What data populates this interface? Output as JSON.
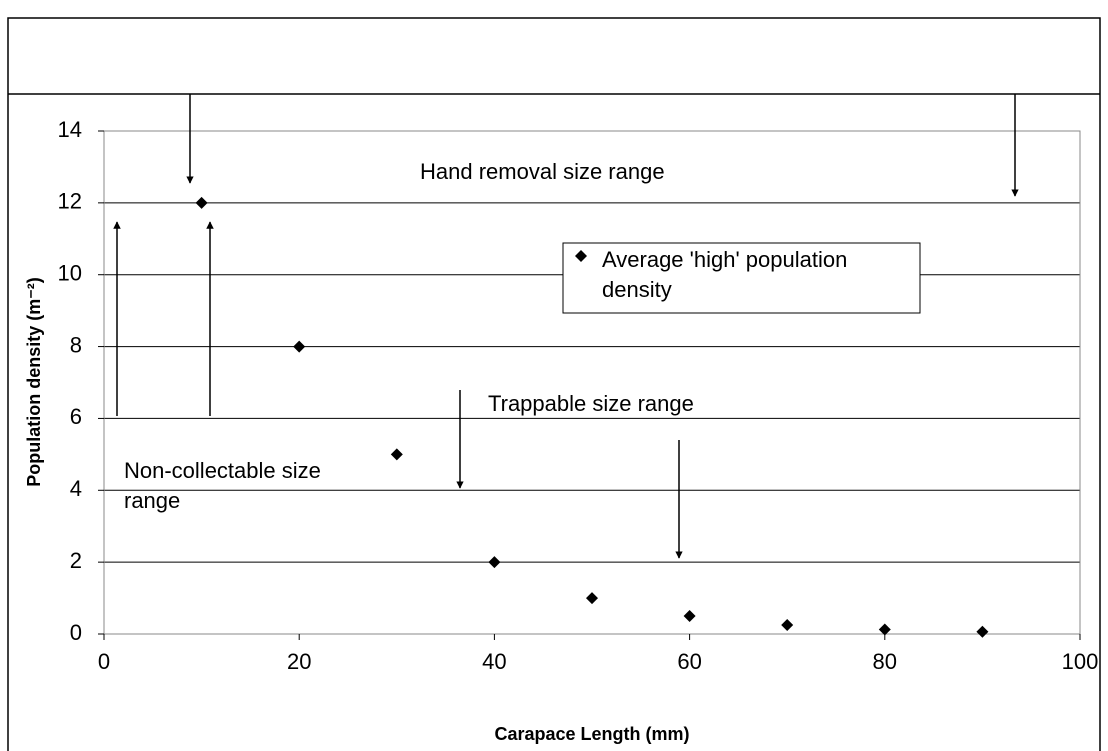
{
  "chart_data": {
    "type": "scatter",
    "x_label": "Carapace Length (mm)",
    "y_label": "Population density (m⁻²)",
    "series": [
      {
        "name": "Average 'high' population density",
        "color": "#000000",
        "x": [
          10,
          20,
          30,
          40,
          50,
          60,
          70,
          80,
          90
        ],
        "values": [
          12,
          8,
          5,
          2,
          1,
          0.5,
          0.25,
          0.125,
          0.0625
        ]
      }
    ],
    "xlim": [
      0,
      100
    ],
    "xticks": [
      0,
      20,
      40,
      60,
      80,
      100
    ],
    "ylim": [
      0,
      14
    ],
    "yticks": [
      0,
      2,
      4,
      6,
      8,
      10,
      12,
      14
    ],
    "grid": true,
    "annotations": [
      "Hand removal size range",
      "Trappable size range",
      "Non-collectable size range"
    ]
  }
}
